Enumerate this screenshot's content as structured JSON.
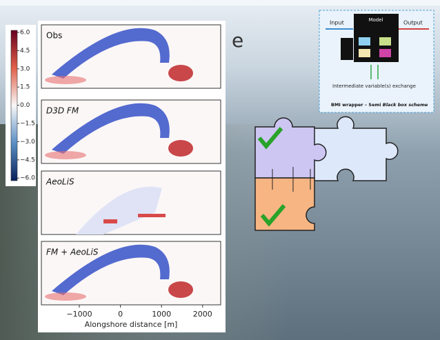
{
  "slide": {
    "title_fragment": "e"
  },
  "colorbar": {
    "ticks": [
      "6.0",
      "4.5",
      "3.0",
      "1.5",
      "0.0",
      "−1.5",
      "−3.0",
      "−4.5",
      "−6.0"
    ]
  },
  "panels": [
    "Obs",
    "D3D FM",
    "AeoLiS",
    "FM + AeoLiS"
  ],
  "x_axis": {
    "ticks": [
      "−1000",
      "0",
      "1000",
      "2000"
    ],
    "label": "Alongshore distance [m]"
  },
  "diagram": {
    "model": "Model",
    "input": "Input",
    "output": "Output",
    "exchange": "Intermediate variable(s) exchange",
    "caption_plain": "BMI wrapper – Semi ",
    "caption_italic": "Black box scheme"
  }
}
